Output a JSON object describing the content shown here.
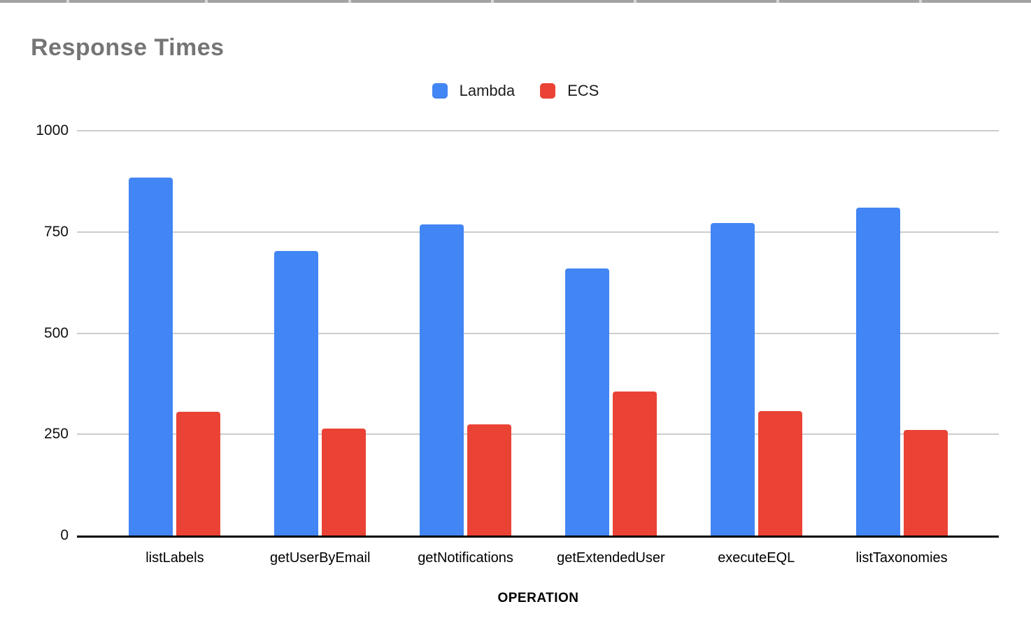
{
  "chart": {
    "title": "Response Times",
    "x_axis_title": "OPERATION"
  },
  "chart_data": {
    "type": "bar",
    "title": "Response Times",
    "categories": [
      "listLabels",
      "getUserByEmail",
      "getNotifications",
      "getExtendedUser",
      "executeEQL",
      "listTaxonomies"
    ],
    "series": [
      {
        "name": "Lambda",
        "color": "#4285F4",
        "values": [
          885,
          703,
          768,
          660,
          772,
          810
        ]
      },
      {
        "name": "ECS",
        "color": "#EA4335",
        "values": [
          305,
          265,
          275,
          355,
          307,
          260
        ]
      }
    ],
    "xlabel": "OPERATION",
    "ylabel": "",
    "ylim": [
      0,
      1000
    ],
    "yticks": [
      0,
      250,
      500,
      750,
      1000
    ],
    "grid": true,
    "legend_position": "top",
    "colors": {
      "axis_line": "#000000",
      "gridline": "#cccccc",
      "title_text": "#757575"
    }
  }
}
